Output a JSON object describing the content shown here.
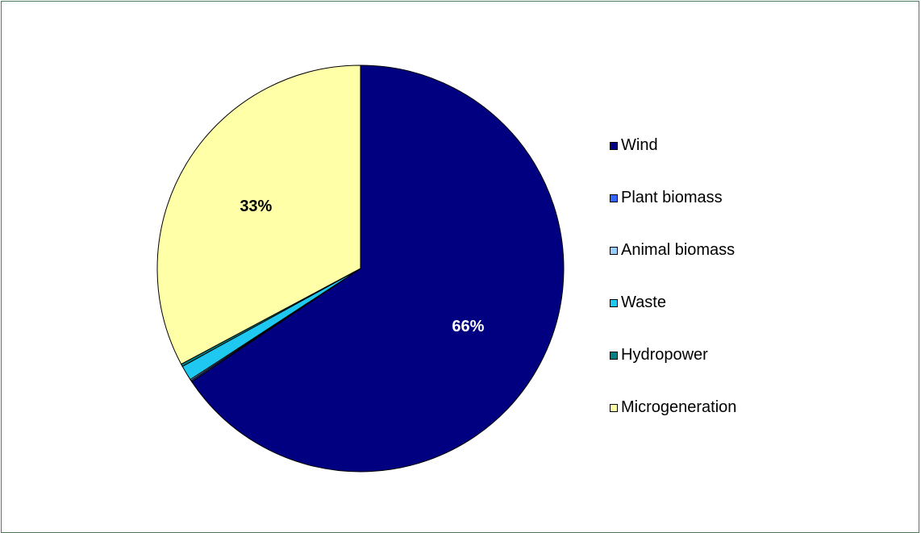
{
  "chart_data": {
    "type": "pie",
    "categories": [
      "Wind",
      "Plant biomass",
      "Animal biomass",
      "Waste",
      "Hydropower",
      "Microgeneration"
    ],
    "values": [
      65.6,
      0.1,
      0.1,
      1.2,
      0.2,
      32.8
    ],
    "colors": [
      "#000080",
      "#3366ff",
      "#99ccff",
      "#1ec8f0",
      "#008080",
      "#ffffa8"
    ],
    "data_labels": [
      "66%",
      "",
      "",
      "",
      "",
      "33%"
    ],
    "label_colors": [
      "#ffffff",
      "#000000",
      "#000000",
      "#000000",
      "#000000",
      "#000000"
    ],
    "legend_position": "right"
  }
}
